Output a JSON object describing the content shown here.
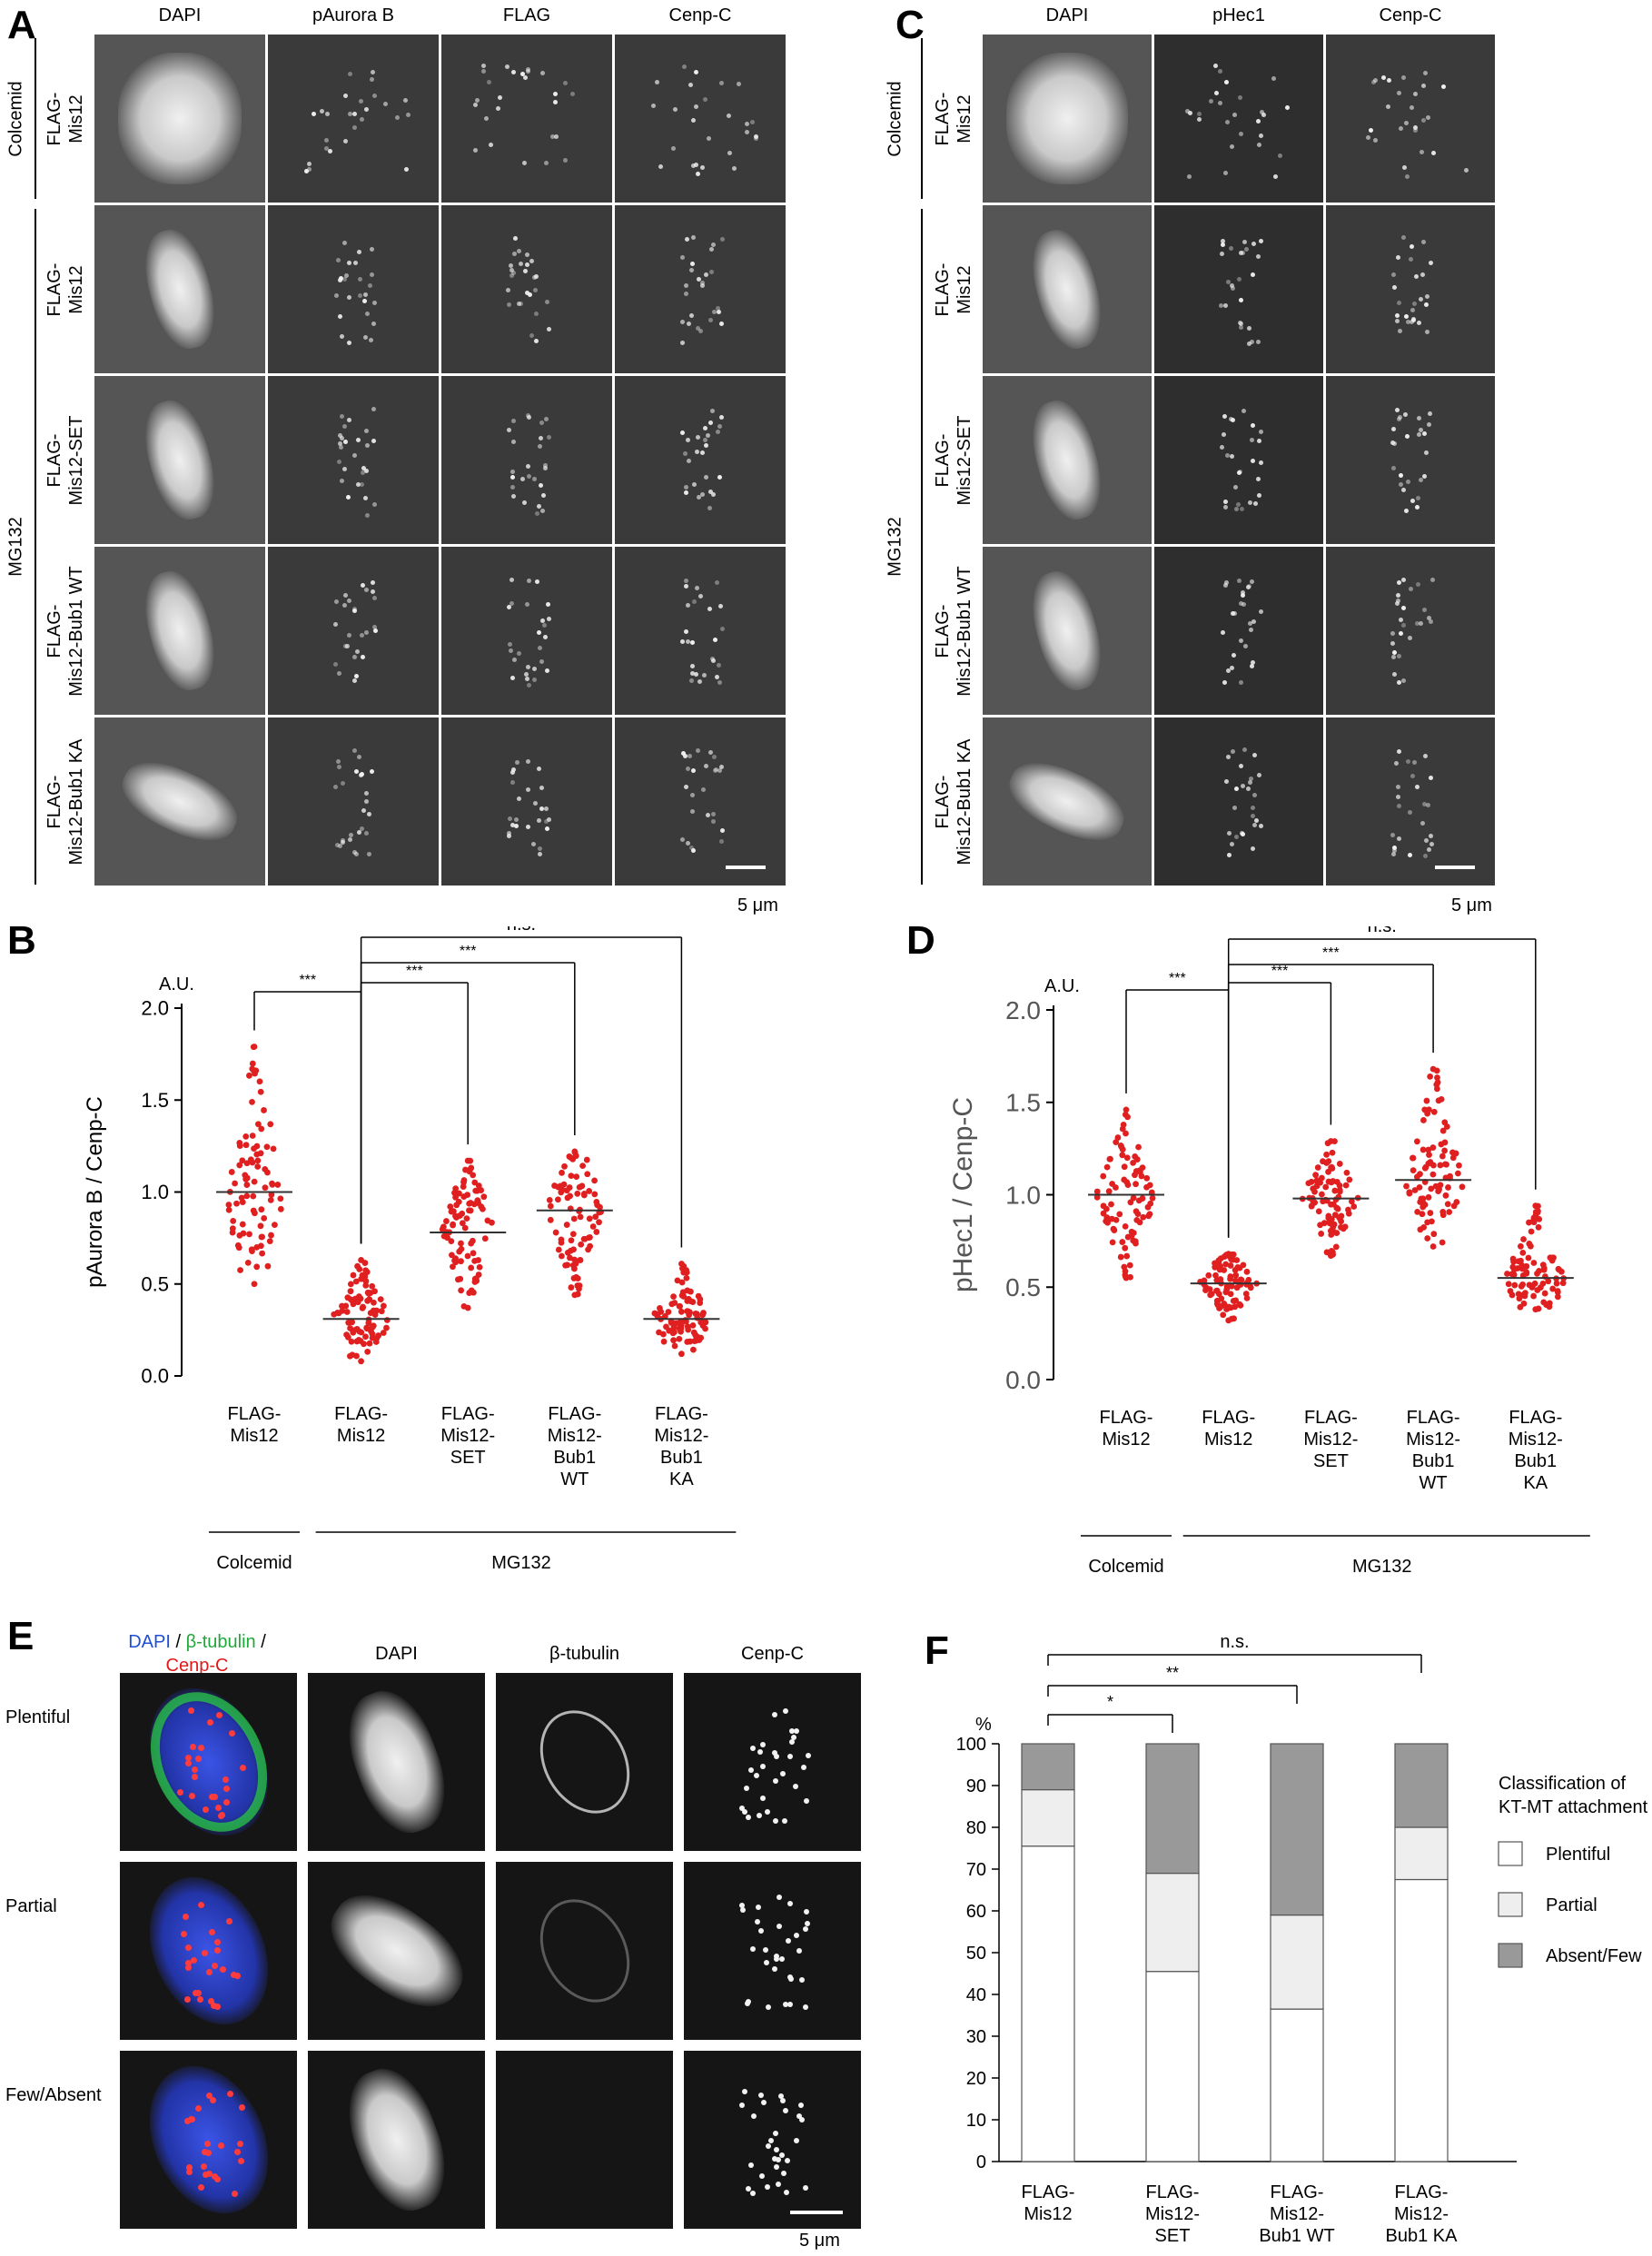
{
  "panel_a": {
    "letter": "A",
    "columns": [
      "DAPI",
      "pAurora B",
      "FLAG",
      "Cenp-C"
    ],
    "conditions": [
      "Colcemid",
      "MG132"
    ],
    "rows": [
      "FLAG-\nMis12",
      "FLAG-\nMis12",
      "FLAG-\nMis12-SET",
      "FLAG-\nMis12-Bub1 WT",
      "FLAG-\nMis12-Bub1 KA"
    ],
    "scale": "5 μm"
  },
  "panel_c": {
    "letter": "C",
    "columns": [
      "DAPI",
      "pHec1",
      "Cenp-C"
    ],
    "conditions": [
      "Colcemid",
      "MG132"
    ],
    "rows": [
      "FLAG-\nMis12",
      "FLAG-\nMis12",
      "FLAG-\nMis12-SET",
      "FLAG-\nMis12-Bub1 WT",
      "FLAG-\nMis12-Bub1 KA"
    ],
    "scale": "5 μm"
  },
  "panel_e": {
    "letter": "E",
    "merge_header": {
      "dapi": "DAPI",
      "sep1": " / ",
      "tub": "β-tubulin",
      "sep2": " /",
      "cenp": "Cenp-C"
    },
    "columns": [
      "DAPI",
      "β-tubulin",
      "Cenp-C"
    ],
    "rows": [
      "Plentiful",
      "Partial",
      "Few/Absent"
    ],
    "scale": "5 μm",
    "colors": {
      "dapi": "#1f4fd6",
      "tubulin": "#1fa83a",
      "cenp": "#e01919"
    }
  },
  "chart_data": [
    {
      "panel": "B",
      "type": "scatter",
      "unit_label": "A.U.",
      "ylabel": "pAurora B / Cenp-C",
      "ylim": [
        0,
        2.0
      ],
      "yticks": [
        "0.0",
        "0.5",
        "1.0",
        "1.5",
        "2.0"
      ],
      "categories": [
        "FLAG-\nMis12",
        "FLAG-\nMis12",
        "FLAG-\nMis12-\nSET",
        "FLAG-\nMis12-\nBub1\nWT",
        "FLAG-\nMis12-\nBub1\nKA"
      ],
      "medians": [
        1.0,
        0.31,
        0.78,
        0.9,
        0.31
      ],
      "ranges": [
        [
          0.5,
          1.79
        ],
        [
          0.08,
          0.63
        ],
        [
          0.37,
          1.17
        ],
        [
          0.44,
          1.22
        ],
        [
          0.12,
          0.61
        ]
      ],
      "group_labels": [
        "Colcemid",
        "MG132"
      ],
      "significance": [
        {
          "from": 0,
          "to": 1,
          "label": "***"
        },
        {
          "from": 1,
          "to": 2,
          "label": "***"
        },
        {
          "from": 1,
          "to": 3,
          "label": "***"
        },
        {
          "from": 1,
          "to": 4,
          "label": "n.s."
        }
      ],
      "point_color": "#e02020"
    },
    {
      "panel": "D",
      "type": "scatter",
      "unit_label": "A.U.",
      "ylabel": "pHec1 / Cenp-C",
      "ylim": [
        0,
        2.0
      ],
      "yticks": [
        "0.0",
        "0.5",
        "1.0",
        "1.5",
        "2.0"
      ],
      "categories": [
        "FLAG-\nMis12",
        "FLAG-\nMis12",
        "FLAG-\nMis12-\nSET",
        "FLAG-\nMis12-\nBub1\nWT",
        "FLAG-\nMis12-\nBub1\nKA"
      ],
      "medians": [
        1.0,
        0.52,
        0.98,
        1.08,
        0.55
      ],
      "ranges": [
        [
          0.55,
          1.46
        ],
        [
          0.32,
          0.68
        ],
        [
          0.67,
          1.29
        ],
        [
          0.72,
          1.68
        ],
        [
          0.38,
          0.94
        ]
      ],
      "group_labels": [
        "Colcemid",
        "MG132"
      ],
      "significance": [
        {
          "from": 0,
          "to": 1,
          "label": "***"
        },
        {
          "from": 1,
          "to": 2,
          "label": "***"
        },
        {
          "from": 1,
          "to": 3,
          "label": "***"
        },
        {
          "from": 1,
          "to": 4,
          "label": "n.s."
        }
      ],
      "point_color": "#e02020"
    },
    {
      "panel": "F",
      "type": "bar",
      "stacked": true,
      "unit_label": "%",
      "ylim": [
        0,
        100
      ],
      "yticks": [
        "0",
        "10",
        "20",
        "30",
        "40",
        "50",
        "60",
        "70",
        "80",
        "90",
        "100"
      ],
      "categories": [
        "FLAG-\nMis12",
        "FLAG-\nMis12-\nSET",
        "FLAG-\nMis12-\nBub1 WT",
        "FLAG-\nMis12-\nBub1 KA"
      ],
      "series": [
        {
          "name": "Plentiful",
          "values": [
            75.5,
            45.5,
            36.5,
            67.5
          ],
          "errors": [
            2,
            2.5,
            3,
            2
          ],
          "color": "#ffffff"
        },
        {
          "name": "Partial",
          "values": [
            13.5,
            23.5,
            22.5,
            12.5
          ],
          "errors": [
            1,
            2,
            1,
            1
          ],
          "color": "#eeeeee"
        },
        {
          "name": "Absent/Few",
          "values": [
            11,
            31,
            41,
            20
          ],
          "errors": [
            0,
            0,
            0,
            0
          ],
          "color": "#999999"
        }
      ],
      "legend_title": "Classification of\nKT-MT attachment",
      "legend_position": "right",
      "significance": [
        {
          "from": 0,
          "to": 1,
          "label": "*"
        },
        {
          "from": 0,
          "to": 2,
          "label": "**"
        },
        {
          "from": 0,
          "to": 3,
          "label": "n.s."
        }
      ]
    }
  ]
}
